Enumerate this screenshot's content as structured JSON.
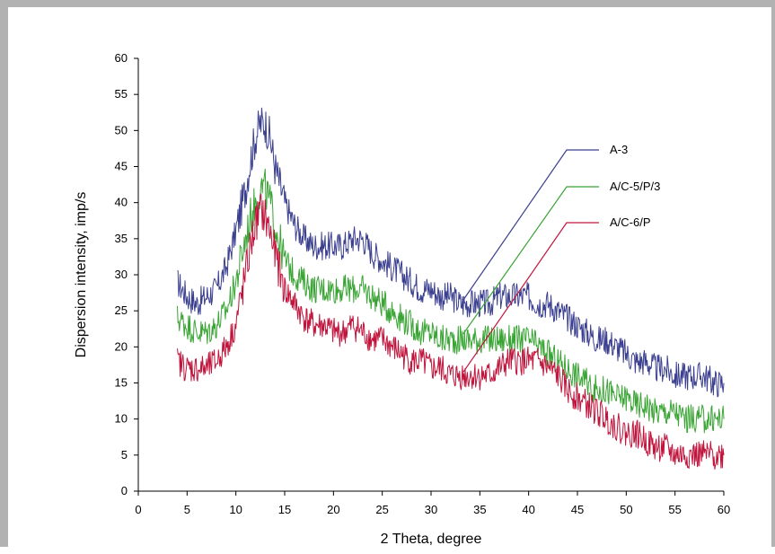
{
  "chart_data": {
    "type": "line",
    "xlabel": "2 Theta, degree",
    "ylabel": "Dispersion intensity, imp/s",
    "xlim": [
      0,
      60
    ],
    "ylim": [
      0,
      60
    ],
    "xticks": [
      0,
      5,
      10,
      15,
      20,
      25,
      30,
      35,
      40,
      45,
      50,
      55,
      60
    ],
    "yticks": [
      0,
      5,
      10,
      15,
      20,
      25,
      30,
      35,
      40,
      45,
      50,
      55,
      60
    ],
    "grid": false,
    "legend_placement": "right (callout lines pointing to curves near x=33)",
    "series": [
      {
        "name": "A-3",
        "color": "#3b3f8f",
        "x": [
          4,
          5,
          6,
          7,
          8,
          9,
          10,
          11,
          11.5,
          12,
          12.5,
          13,
          13.5,
          14,
          15,
          16,
          17,
          18,
          19,
          20,
          21,
          22,
          23,
          24,
          25,
          26,
          27,
          28,
          29,
          30,
          31,
          32,
          33,
          34,
          35,
          36,
          37,
          38,
          39,
          40,
          41,
          42,
          43,
          44,
          45,
          46,
          47,
          48,
          49,
          50,
          51,
          52,
          53,
          54,
          55,
          56,
          57,
          58,
          59,
          60
        ],
        "values": [
          29,
          27,
          26,
          27,
          28,
          31,
          36,
          42,
          46,
          49,
          51,
          51,
          49,
          45,
          40,
          37,
          35,
          34,
          34,
          34,
          34,
          35,
          35,
          33,
          32,
          31,
          30,
          29,
          28,
          28,
          27,
          27,
          26,
          26,
          26,
          26,
          27,
          27,
          27,
          27,
          26,
          26,
          25,
          24,
          23,
          22,
          21,
          21,
          20,
          19,
          18,
          18,
          17,
          17,
          16,
          16,
          16,
          16,
          15,
          15
        ]
      },
      {
        "name": "A/C-5/P/3",
        "color": "#3aa535",
        "x": [
          4,
          5,
          6,
          7,
          8,
          9,
          10,
          11,
          11.5,
          12,
          12.5,
          13,
          13.5,
          14,
          15,
          16,
          17,
          18,
          19,
          20,
          21,
          22,
          23,
          24,
          25,
          26,
          27,
          28,
          29,
          30,
          31,
          32,
          33,
          34,
          35,
          36,
          37,
          38,
          39,
          40,
          41,
          42,
          43,
          44,
          45,
          46,
          47,
          48,
          49,
          50,
          51,
          52,
          53,
          54,
          55,
          56,
          57,
          58,
          59,
          60
        ],
        "values": [
          24,
          23,
          22,
          22,
          23,
          25,
          29,
          35,
          38,
          40,
          42,
          42,
          40,
          37,
          32,
          30,
          29,
          28,
          28,
          28,
          28,
          28,
          28,
          27,
          26,
          25,
          24,
          23,
          22,
          22,
          21,
          21,
          21,
          21,
          21,
          21,
          21,
          21,
          21,
          21,
          20,
          19,
          18,
          17,
          16,
          15,
          14,
          14,
          13,
          13,
          12,
          12,
          11,
          11,
          11,
          10,
          10,
          10,
          10,
          10
        ]
      },
      {
        "name": "A/C-6/P",
        "color": "#c0143c",
        "x": [
          4,
          5,
          6,
          7,
          8,
          9,
          10,
          11,
          11.5,
          12,
          12.5,
          13,
          13.5,
          14,
          15,
          16,
          17,
          18,
          19,
          20,
          21,
          22,
          23,
          24,
          25,
          26,
          27,
          28,
          29,
          30,
          31,
          32,
          33,
          34,
          35,
          36,
          37,
          38,
          39,
          40,
          41,
          42,
          43,
          44,
          45,
          46,
          47,
          48,
          49,
          50,
          51,
          52,
          53,
          54,
          55,
          56,
          57,
          58,
          59,
          60
        ],
        "values": [
          18,
          17,
          17,
          17,
          18,
          20,
          23,
          30,
          34,
          37,
          39,
          38,
          36,
          33,
          28,
          26,
          24,
          23,
          23,
          22,
          22,
          23,
          22,
          21,
          21,
          20,
          19,
          18,
          18,
          17,
          17,
          16,
          16,
          16,
          16,
          16,
          17,
          18,
          18,
          18,
          18,
          17,
          16,
          14,
          13,
          12,
          11,
          10,
          9,
          8,
          8,
          7,
          6,
          6,
          5,
          5,
          5,
          5,
          5,
          5
        ]
      }
    ],
    "legend": [
      {
        "label": "A-3",
        "series": 0,
        "anchor_x": 33.3,
        "anchor_y": 26.5
      },
      {
        "label": "A/C-5/P/3",
        "series": 1,
        "anchor_x": 33.3,
        "anchor_y": 21.8
      },
      {
        "label": "A/C-6/P",
        "series": 2,
        "anchor_x": 33.3,
        "anchor_y": 16.5
      }
    ]
  }
}
